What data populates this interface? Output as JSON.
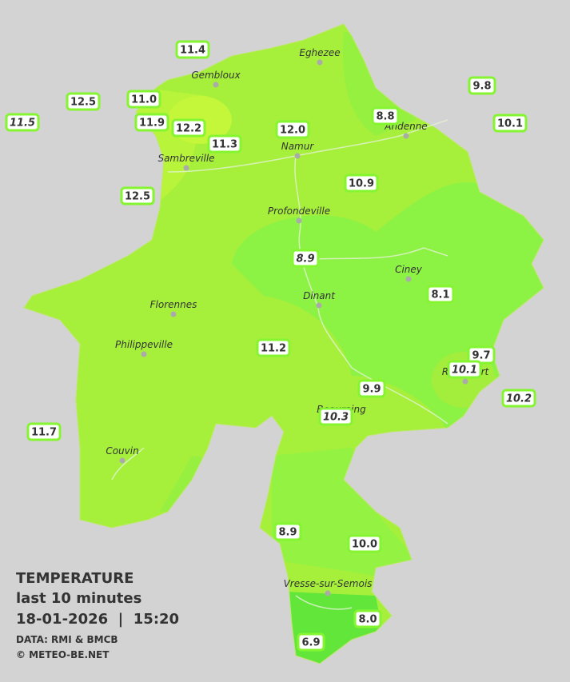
{
  "title": "TEMPERATURE",
  "subtitle": "last 10 minutes",
  "datetime": "18-01-2026  |  15:20",
  "source": "DATA: RMI & BMCB",
  "copyright": "© METEO-BE.NET",
  "cities": [
    "Eghezee",
    "Gembloux",
    "Andenne",
    "Namur",
    "Sambreville",
    "Profondeville",
    "Ciney",
    "Dinant",
    "Florennes",
    "Philippeville",
    "Rochefort",
    "Beauraing",
    "Couvin",
    "Vresse-sur-Semois"
  ],
  "stations": [
    {
      "label": "11.4"
    },
    {
      "label": "12.5"
    },
    {
      "label": "11.0"
    },
    {
      "label": "11.5",
      "italic": true
    },
    {
      "label": "11.9"
    },
    {
      "label": "12.2"
    },
    {
      "label": "11.3"
    },
    {
      "label": "12.0"
    },
    {
      "label": "8.8"
    },
    {
      "label": "9.8"
    },
    {
      "label": "10.1"
    },
    {
      "label": "12.5"
    },
    {
      "label": "10.9"
    },
    {
      "label": "8.9",
      "italic": true
    },
    {
      "label": "8.1"
    },
    {
      "label": "11.2"
    },
    {
      "label": "9.7"
    },
    {
      "label": "10.1",
      "italic": true
    },
    {
      "label": "10.2",
      "italic": true
    },
    {
      "label": "9.9"
    },
    {
      "label": "10.3",
      "italic": true
    },
    {
      "label": "11.7"
    },
    {
      "label": "8.9"
    },
    {
      "label": "10.0"
    },
    {
      "label": "8.0"
    },
    {
      "label": "6.9"
    }
  ]
}
